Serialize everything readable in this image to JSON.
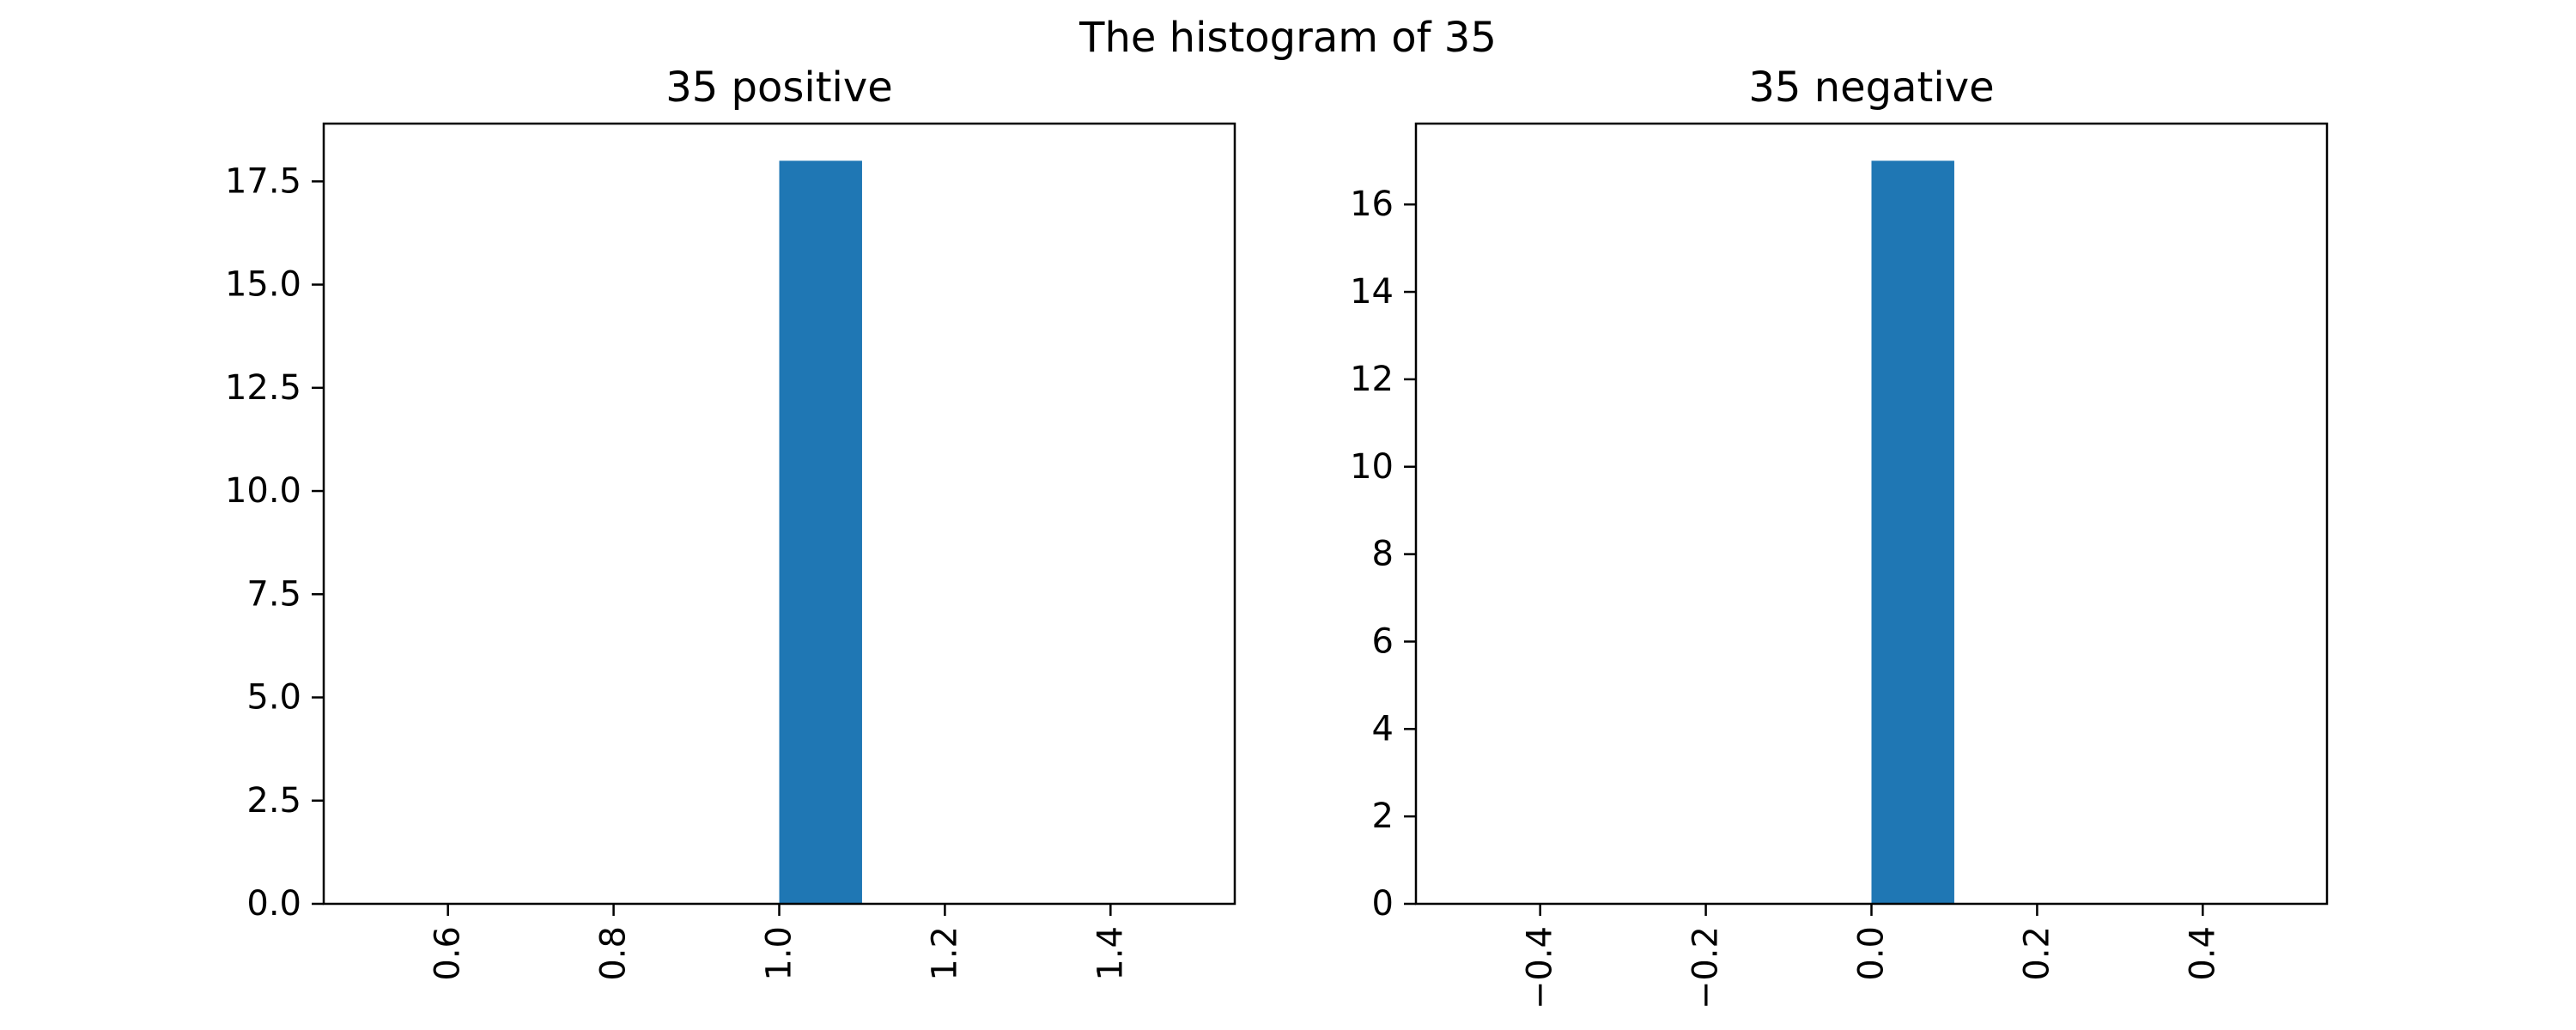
{
  "figure": {
    "suptitle": "The histogram of 35"
  },
  "chart_data": [
    {
      "type": "bar",
      "title": "35 positive",
      "xlabel": "",
      "ylabel": "",
      "bins": [
        {
          "x0": 1.0,
          "x1": 1.1,
          "count": 18
        }
      ],
      "xlim": [
        0.45,
        1.55
      ],
      "ylim": [
        0,
        18.9
      ],
      "xticks": [
        0.6,
        0.8,
        1.0,
        1.2,
        1.4
      ],
      "xtick_labels": [
        "0.6",
        "0.8",
        "1.0",
        "1.2",
        "1.4"
      ],
      "yticks": [
        0,
        2.5,
        5,
        7.5,
        10,
        12.5,
        15,
        17.5
      ],
      "ytick_labels": [
        "0.0",
        "2.5",
        "5.0",
        "7.5",
        "10.0",
        "12.5",
        "15.0",
        "17.5"
      ],
      "grid": false,
      "color": "#1f77b4"
    },
    {
      "type": "bar",
      "title": "35 negative",
      "xlabel": "",
      "ylabel": "",
      "bins": [
        {
          "x0": 0.0,
          "x1": 0.1,
          "count": 17
        }
      ],
      "xlim": [
        -0.55,
        0.55
      ],
      "ylim": [
        0,
        17.85
      ],
      "xticks": [
        -0.4,
        -0.2,
        0.0,
        0.2,
        0.4
      ],
      "xtick_labels": [
        "−0.4",
        "−0.2",
        "0.0",
        "0.2",
        "0.4"
      ],
      "yticks": [
        0,
        2,
        4,
        6,
        8,
        10,
        12,
        14,
        16
      ],
      "ytick_labels": [
        "0",
        "2",
        "4",
        "6",
        "8",
        "10",
        "12",
        "14",
        "16"
      ],
      "grid": false,
      "color": "#1f77b4"
    }
  ]
}
